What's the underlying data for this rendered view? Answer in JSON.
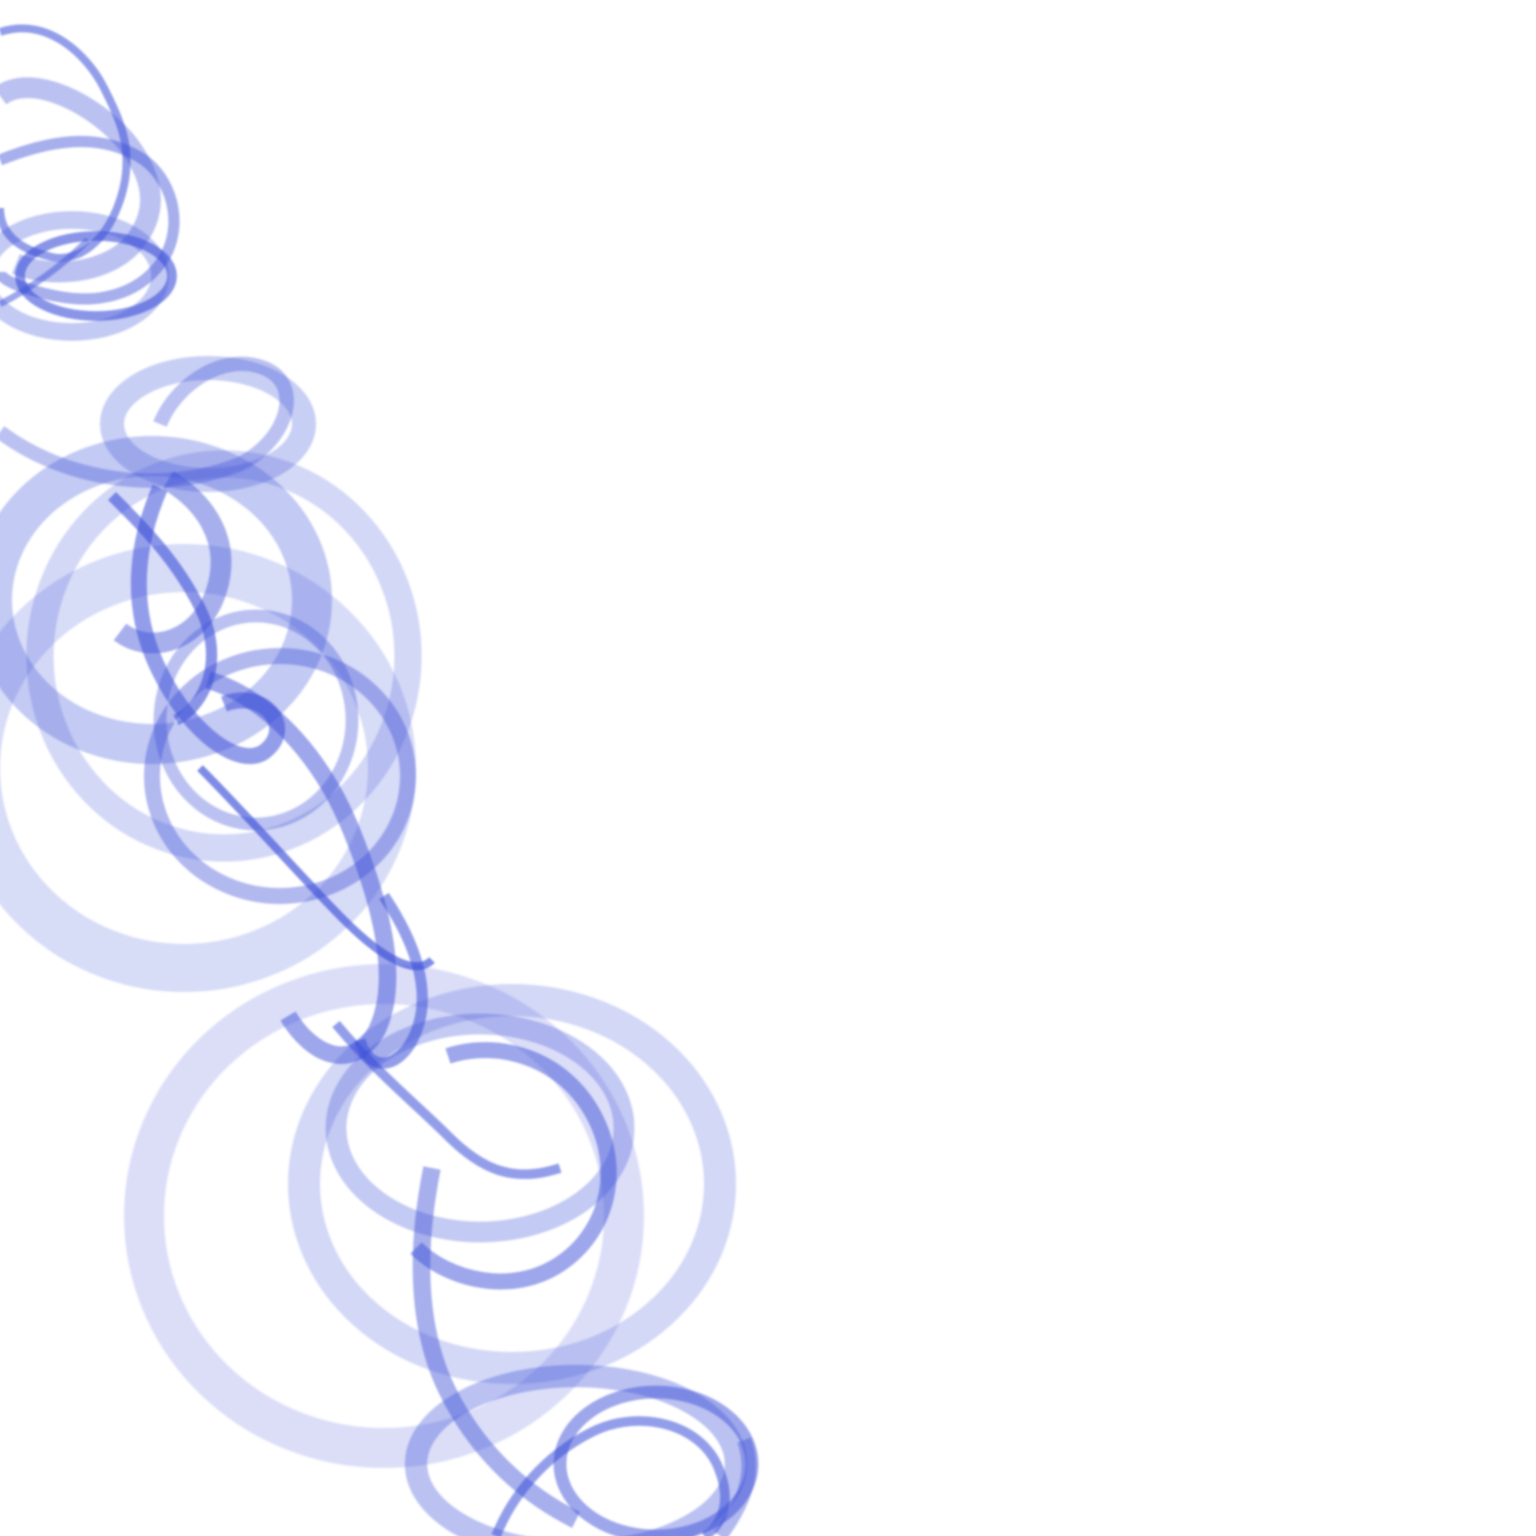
{
  "image": {
    "background_color": "#ffffff",
    "accent_color": "#3b4fd8",
    "subject": "abstract-blue-smoke-swirls"
  }
}
